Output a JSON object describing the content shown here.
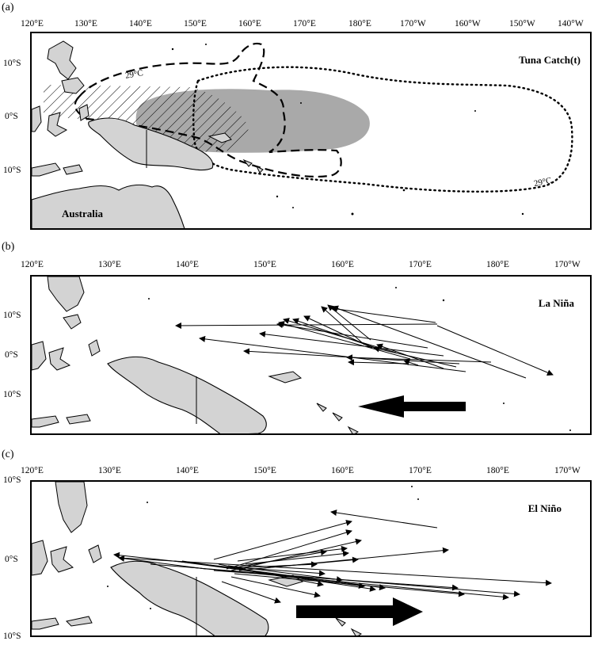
{
  "panels": [
    {
      "letter": "(a)",
      "lon_ticks": [
        "120°E",
        "130°E",
        "140°E",
        "150°E",
        "160°E",
        "170°E",
        "180°E",
        "170°W",
        "160°W",
        "150°W",
        "140°W"
      ],
      "lat_ticks": [
        "10°S",
        "0°S",
        "10°S"
      ],
      "title": "Tuna Catch(t)",
      "landmass_label": "Australia",
      "isotherm_labels": [
        "29°C",
        "29°C"
      ]
    },
    {
      "letter": "(b)",
      "lon_ticks": [
        "120°E",
        "130°E",
        "140°E",
        "150°E",
        "160°E",
        "170°E",
        "180°E",
        "170°W"
      ],
      "lat_ticks": [
        "10°S",
        "0°S",
        "10°S"
      ],
      "title": "La Niña",
      "arrow_direction": "west"
    },
    {
      "letter": "(c)",
      "lon_ticks": [
        "120°E",
        "130°E",
        "140°E",
        "150°E",
        "160°E",
        "170°E",
        "180°E",
        "170°W"
      ],
      "lat_ticks": [
        "10°S",
        "0°S",
        "10°S"
      ],
      "title": "El Niño",
      "arrow_direction": "east"
    }
  ],
  "colors": {
    "land": "#d3d3d3",
    "catch_shading": "#a9a9a9",
    "lines": "#000000"
  }
}
